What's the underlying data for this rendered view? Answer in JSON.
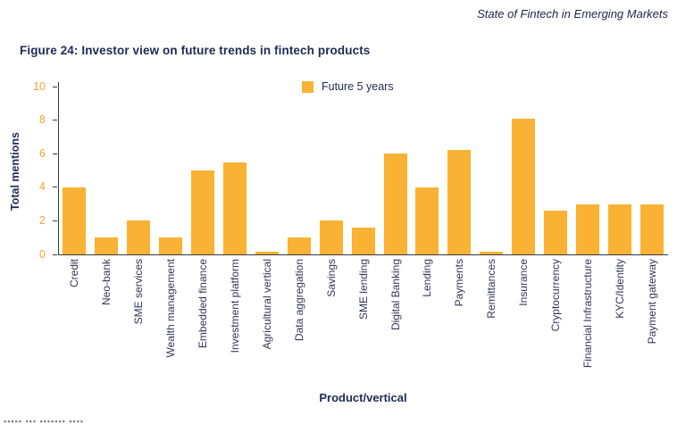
{
  "page": {
    "report_header": "State of Fintech in Emerging Markets",
    "figure_title": "Figure 24: Investor view on future trends in fintech products"
  },
  "chart_data": {
    "type": "bar",
    "title": "Figure 24: Investor view on future trends in fintech products",
    "xlabel": "Product/vertical",
    "ylabel": "Total mentions",
    "ylim": [
      0,
      10
    ],
    "yticks": [
      0,
      2,
      4,
      6,
      8,
      10
    ],
    "grid": false,
    "legend_position": "top-center",
    "series_name": "Future 5 years",
    "bar_color": "#F9B233",
    "categories": [
      "Credit",
      "Neo-bank",
      "SME services",
      "Wealth management",
      "Embedded finance",
      "Investment platform",
      "Agricultural vertical",
      "Data aggregation",
      "Savings",
      "SME lending",
      "Digital Banking",
      "Lending",
      "Payments",
      "Remittances",
      "Insurance",
      "Cryptocurrency",
      "Financial Infrastructure",
      "KYC/Identity",
      "Payment gateway"
    ],
    "values": [
      4,
      1,
      2,
      1,
      5,
      5.5,
      0.15,
      1,
      2,
      1.6,
      6,
      4,
      6.2,
      0.15,
      8.1,
      2.6,
      3,
      3,
      3
    ]
  },
  "footer": {
    "partially_cut_off": true,
    "clipped_text": "▪▪▪▪▪ ▪▪▪ ▪▪▪▪▪▪▪ ▪▪▪▪"
  },
  "colors": {
    "bar": "#F9B233",
    "ytick_labels": "#F0A433",
    "title_navy": "#1F2A55",
    "axis_text": "#2F3857",
    "spine": "#3A3A3A"
  }
}
